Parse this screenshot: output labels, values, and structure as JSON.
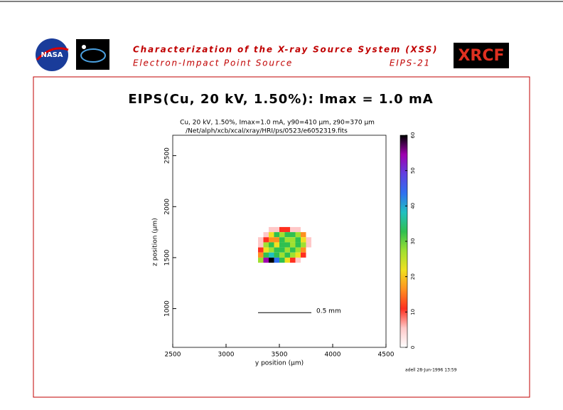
{
  "header": {
    "title": "Characterization of the X-ray Source System (XSS)",
    "subtitle": "Electron-Impact Point Source",
    "code": "EIPS-21",
    "left_logo": "NASA",
    "right_logo": "XRCF"
  },
  "chart_data": {
    "type": "heatmap",
    "title": "EIPS(Cu, 20 kV, 1.50%): Imax = 1.0 mA",
    "subtitle": "Cu, 20 kV, 1.50%, Imax=1.0 mA, y90=410 μm, z90=370 μm",
    "file": "/Net/alph/xcb/xcal/xray/HRI/ps/0523/e6052319.fits",
    "x_label": "y position (μm)",
    "y_label": "z position (μm)",
    "xlim": [
      2500,
      4500
    ],
    "xticks": [
      2500,
      3000,
      3500,
      4000,
      4500
    ],
    "ylim": [
      620,
      2700
    ],
    "yticks": [
      1000,
      1500,
      2000,
      2500
    ],
    "x": [
      3325,
      3375,
      3425,
      3475,
      3525,
      3575,
      3625,
      3675,
      3725,
      3775
    ],
    "y": [
      1775,
      1725,
      1675,
      1625,
      1575,
      1525,
      1475
    ],
    "cell_size": 50,
    "values": [
      [
        0,
        0,
        3,
        8,
        12,
        10,
        8,
        5,
        0,
        0
      ],
      [
        0,
        5,
        22,
        30,
        28,
        35,
        32,
        25,
        15,
        0
      ],
      [
        3,
        12,
        18,
        14,
        30,
        25,
        28,
        32,
        22,
        5
      ],
      [
        8,
        25,
        30,
        22,
        32,
        35,
        27,
        30,
        25,
        5
      ],
      [
        10,
        20,
        28,
        35,
        30,
        25,
        32,
        28,
        18,
        0
      ],
      [
        15,
        30,
        38,
        30,
        25,
        32,
        28,
        22,
        10,
        0
      ],
      [
        25,
        55,
        58,
        45,
        30,
        20,
        12,
        5,
        0,
        0
      ]
    ],
    "clim": [
      0,
      60
    ],
    "cticks": [
      0,
      10,
      20,
      30,
      40,
      50,
      60
    ],
    "colorscale": [
      "#ffffff",
      "#ffc8c8",
      "#ff3020",
      "#ff9020",
      "#f0e020",
      "#a0e030",
      "#30c050",
      "#20c0c0",
      "#3070f0",
      "#6040e0",
      "#a000b0",
      "#000000"
    ],
    "scale_bar": {
      "label": "0.5 mm",
      "length": 500,
      "x": 3300,
      "y": 960
    },
    "footer": "adell 28-Jun-1996 13:59"
  }
}
